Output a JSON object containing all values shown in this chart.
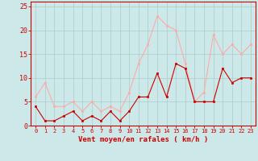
{
  "hours": [
    0,
    1,
    2,
    3,
    4,
    5,
    6,
    7,
    8,
    9,
    10,
    11,
    12,
    13,
    14,
    15,
    16,
    17,
    18,
    19,
    20,
    21,
    22,
    23
  ],
  "wind_avg": [
    4,
    1,
    1,
    2,
    3,
    1,
    2,
    1,
    3,
    1,
    3,
    6,
    6,
    11,
    6,
    13,
    12,
    5,
    5,
    5,
    12,
    9,
    10,
    10
  ],
  "wind_gust": [
    6,
    9,
    4,
    4,
    5,
    3,
    5,
    3,
    4,
    3,
    7,
    13,
    17,
    23,
    21,
    20,
    13,
    5,
    7,
    19,
    15,
    17,
    15,
    17
  ],
  "color_avg": "#cc0000",
  "color_gust": "#ffaaaa",
  "bg_color": "#cce8e8",
  "grid_color": "#aacccc",
  "xlabel": "Vent moyen/en rafales ( km/h )",
  "xlabel_color": "#cc0000",
  "tick_color": "#cc0000",
  "ylim": [
    0,
    26
  ],
  "yticks": [
    0,
    5,
    10,
    15,
    20,
    25
  ],
  "spine_color": "#cc0000",
  "line_width": 0.8,
  "marker_size": 2.0
}
